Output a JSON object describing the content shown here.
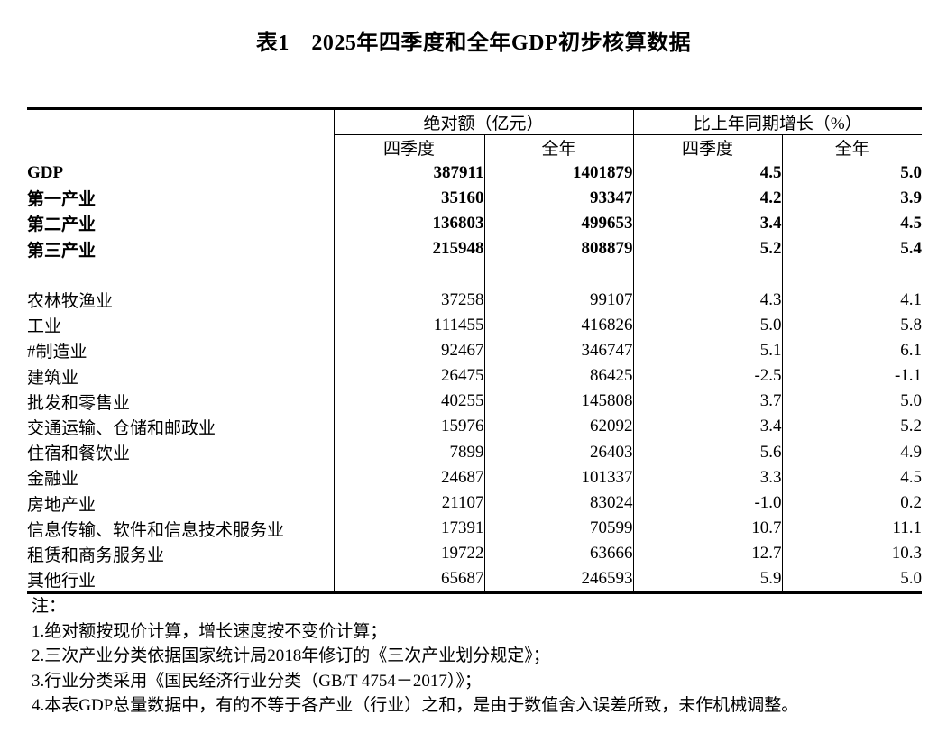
{
  "title": "表1　2025年四季度和全年GDP初步核算数据",
  "table": {
    "col_groups": [
      {
        "label": "绝对额（亿元）"
      },
      {
        "label": "比上年同期增长（%）"
      }
    ],
    "sub_headers": [
      "四季度",
      "全年",
      "四季度",
      "全年"
    ],
    "rows": [
      {
        "label": "GDP",
        "bold": true,
        "values": [
          "387911",
          "1401879",
          "4.5",
          "5.0"
        ]
      },
      {
        "label": "第一产业",
        "bold": true,
        "values": [
          "35160",
          "93347",
          "4.2",
          "3.9"
        ]
      },
      {
        "label": "第二产业",
        "bold": true,
        "values": [
          "136803",
          "499653",
          "3.4",
          "4.5"
        ]
      },
      {
        "label": "第三产业",
        "bold": true,
        "values": [
          "215948",
          "808879",
          "5.2",
          "5.4"
        ]
      },
      {
        "label": "",
        "spacer": true,
        "values": [
          "",
          "",
          "",
          ""
        ]
      },
      {
        "label": "农林牧渔业",
        "values": [
          "37258",
          "99107",
          "4.3",
          "4.1"
        ]
      },
      {
        "label": "工业",
        "values": [
          "111455",
          "416826",
          "5.0",
          "5.8"
        ]
      },
      {
        "label": "#制造业",
        "indent": true,
        "values": [
          "92467",
          "346747",
          "5.1",
          "6.1"
        ]
      },
      {
        "label": "建筑业",
        "values": [
          "26475",
          "86425",
          "-2.5",
          "-1.1"
        ]
      },
      {
        "label": "批发和零售业",
        "values": [
          "40255",
          "145808",
          "3.7",
          "5.0"
        ]
      },
      {
        "label": "交通运输、仓储和邮政业",
        "values": [
          "15976",
          "62092",
          "3.4",
          "5.2"
        ]
      },
      {
        "label": "住宿和餐饮业",
        "values": [
          "7899",
          "26403",
          "5.6",
          "4.9"
        ]
      },
      {
        "label": "金融业",
        "values": [
          "24687",
          "101337",
          "3.3",
          "4.5"
        ]
      },
      {
        "label": "房地产业",
        "values": [
          "21107",
          "83024",
          "-1.0",
          "0.2"
        ]
      },
      {
        "label": "信息传输、软件和信息技术服务业",
        "values": [
          "17391",
          "70599",
          "10.7",
          "11.1"
        ]
      },
      {
        "label": "租赁和商务服务业",
        "values": [
          "19722",
          "63666",
          "12.7",
          "10.3"
        ]
      },
      {
        "label": "其他行业",
        "values": [
          "65687",
          "246593",
          "5.9",
          "5.0"
        ]
      }
    ]
  },
  "notes": {
    "heading": "注：",
    "items": [
      "1.绝对额按现价计算，增长速度按不变价计算；",
      "2.三次产业分类依据国家统计局2018年修订的《三次产业划分规定》；",
      "3.行业分类采用《国民经济行业分类（GB/T 4754－2017）》；",
      "4.本表GDP总量数据中，有的不等于各产业（行业）之和，是由于数值舍入误差所致，未作机械调整。"
    ]
  }
}
